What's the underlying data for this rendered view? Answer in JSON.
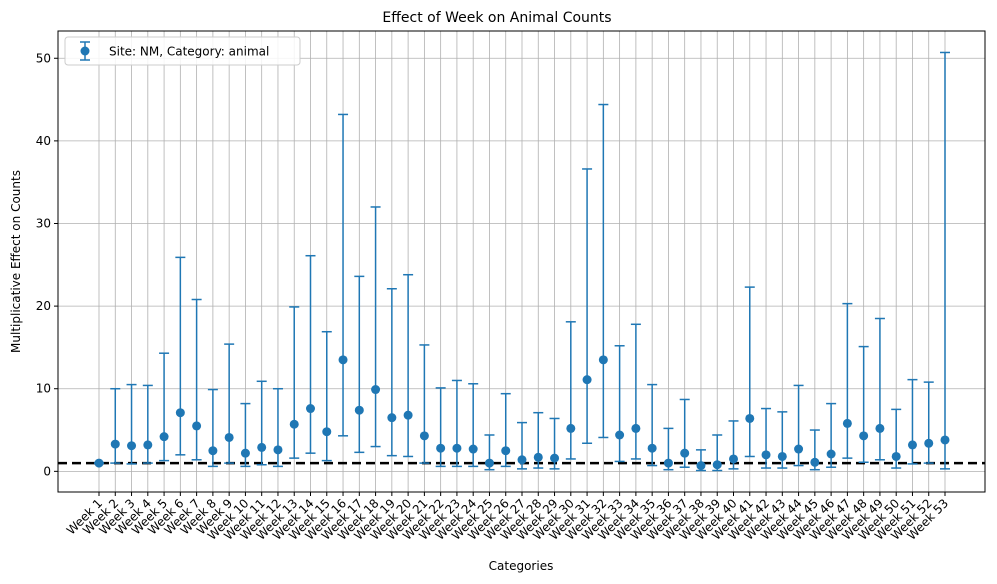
{
  "chart_data": {
    "type": "scatter",
    "title": "Effect of Week on Animal Counts",
    "xlabel": "Categories",
    "ylabel": "Multiplicative Effect on Counts",
    "ylim": [
      -2.5,
      53.3
    ],
    "yticks": [
      0,
      10,
      20,
      30,
      40,
      50
    ],
    "grid": true,
    "legend_position": "top-left",
    "reference_line": 1,
    "categories": [
      "Week 1",
      "Week 2",
      "Week 3",
      "Week 4",
      "Week 5",
      "Week 6",
      "Week 7",
      "Week 8",
      "Week 9",
      "Week 10",
      "Week 11",
      "Week 12",
      "Week 13",
      "Week 14",
      "Week 15",
      "Week 16",
      "Week 17",
      "Week 18",
      "Week 19",
      "Week 20",
      "Week 21",
      "Week 22",
      "Week 23",
      "Week 24",
      "Week 25",
      "Week 26",
      "Week 27",
      "Week 28",
      "Week 29",
      "Week 30",
      "Week 31",
      "Week 32",
      "Week 33",
      "Week 34",
      "Week 35",
      "Week 36",
      "Week 37",
      "Week 38",
      "Week 39",
      "Week 40",
      "Week 41",
      "Week 42",
      "Week 43",
      "Week 44",
      "Week 45",
      "Week 46",
      "Week 47",
      "Week 48",
      "Week 49",
      "Week 50",
      "Week 51",
      "Week 52",
      "Week 53"
    ],
    "series": [
      {
        "name": "Site: NM, Category: animal",
        "color": "#1f77b4",
        "values": [
          1.0,
          3.3,
          3.1,
          3.2,
          4.2,
          7.1,
          5.5,
          2.5,
          4.1,
          2.2,
          2.9,
          2.6,
          5.7,
          7.6,
          4.8,
          13.5,
          7.4,
          9.9,
          6.5,
          6.8,
          4.3,
          2.8,
          2.8,
          2.7,
          1.0,
          2.5,
          1.4,
          1.7,
          1.6,
          5.2,
          11.1,
          13.5,
          4.4,
          5.2,
          2.8,
          1.0,
          2.2,
          0.7,
          0.8,
          1.5,
          6.4,
          2.0,
          1.8,
          2.7,
          1.1,
          2.1,
          5.8,
          4.3,
          5.2,
          1.8,
          3.2,
          3.4,
          3.8
        ],
        "lower": [
          1.0,
          1.0,
          0.9,
          1.0,
          1.3,
          2.0,
          1.4,
          0.6,
          1.0,
          0.6,
          0.8,
          0.6,
          1.6,
          2.2,
          1.3,
          4.3,
          2.3,
          3.0,
          1.9,
          1.8,
          1.0,
          0.6,
          0.6,
          0.6,
          0.2,
          0.6,
          0.3,
          0.4,
          0.3,
          1.5,
          3.4,
          4.1,
          1.2,
          1.5,
          0.7,
          0.2,
          0.5,
          0.1,
          0.1,
          0.3,
          1.8,
          0.4,
          0.4,
          0.7,
          0.2,
          0.5,
          1.6,
          1.1,
          1.4,
          0.4,
          0.9,
          1.0,
          0.3
        ],
        "upper": [
          1.0,
          10.0,
          10.5,
          10.4,
          14.3,
          25.9,
          20.8,
          9.9,
          15.4,
          8.2,
          10.9,
          10.0,
          19.9,
          26.1,
          16.9,
          43.2,
          23.6,
          32.0,
          22.1,
          23.8,
          15.3,
          10.1,
          11.0,
          10.6,
          4.4,
          9.4,
          5.9,
          7.1,
          6.4,
          18.1,
          36.6,
          44.4,
          15.2,
          17.8,
          10.5,
          5.2,
          8.7,
          2.6,
          4.4,
          6.1,
          22.3,
          7.6,
          7.2,
          10.4,
          5.0,
          8.2,
          20.3,
          15.1,
          18.5,
          7.5,
          11.1,
          10.8,
          50.7
        ]
      }
    ]
  }
}
